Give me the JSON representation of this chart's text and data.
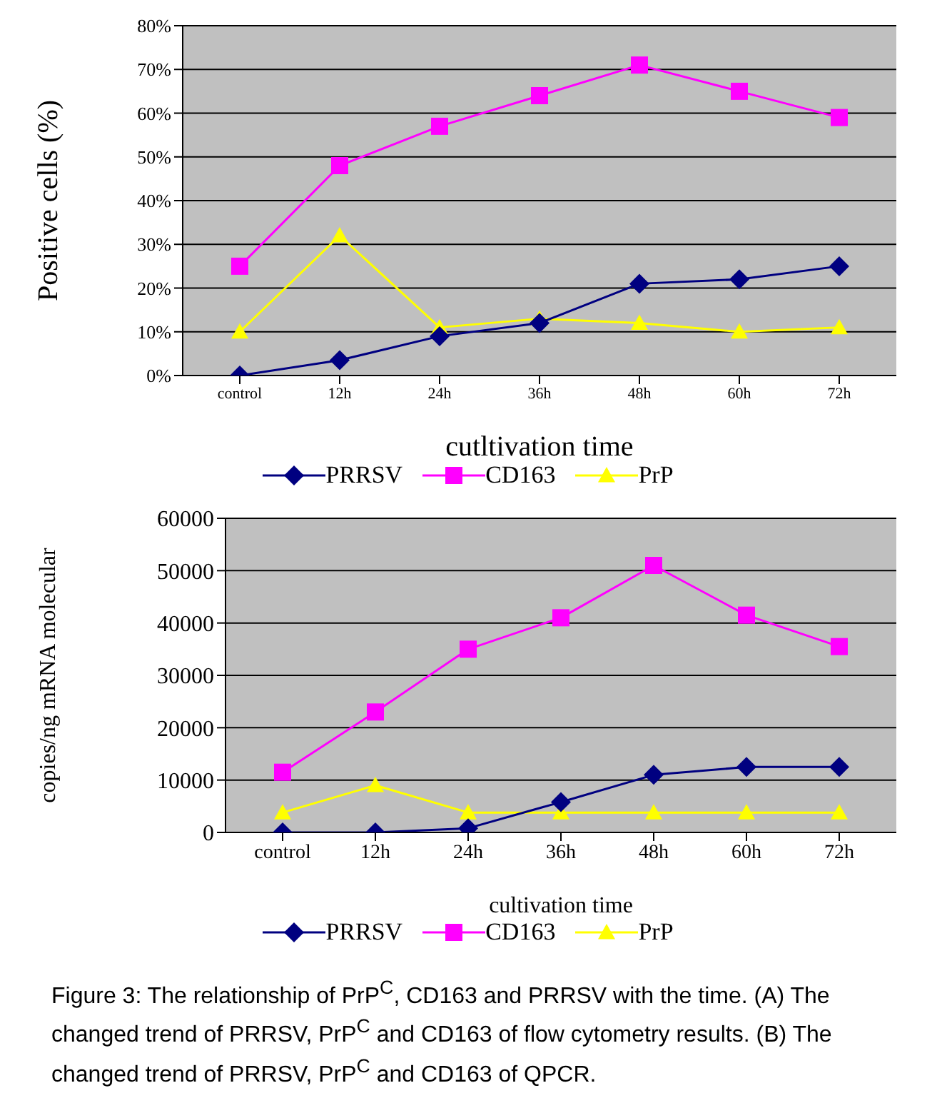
{
  "chart_data": [
    {
      "type": "line",
      "ylabel": "Positive cells (%)",
      "xlabel": "cutltivation time",
      "categories": [
        "control",
        "12h",
        "24h",
        "36h",
        "48h",
        "60h",
        "72h"
      ],
      "series": [
        {
          "name": "PRRSV",
          "color": "#000080",
          "marker": "diamond",
          "values": [
            0,
            3.5,
            9,
            12,
            21,
            22,
            25
          ]
        },
        {
          "name": "CD163",
          "color": "#ff00ff",
          "marker": "square",
          "values": [
            25,
            48,
            57,
            64,
            71,
            65,
            59
          ]
        },
        {
          "name": "PrP",
          "color": "#ffff00",
          "marker": "triangle",
          "values": [
            10,
            32,
            11,
            13,
            12,
            10,
            11
          ]
        }
      ],
      "ylim": [
        0,
        80
      ],
      "yticks": [
        {
          "value": 0,
          "label": "0%"
        },
        {
          "value": 10,
          "label": "10%"
        },
        {
          "value": 20,
          "label": "20%"
        },
        {
          "value": 30,
          "label": "30%"
        },
        {
          "value": 40,
          "label": "40%"
        },
        {
          "value": 50,
          "label": "50%"
        },
        {
          "value": 60,
          "label": "60%"
        },
        {
          "value": 70,
          "label": "70%"
        },
        {
          "value": 80,
          "label": "80%"
        }
      ],
      "grid": "y",
      "legend": "bottom"
    },
    {
      "type": "line",
      "ylabel": "copies/ng mRNA molecular",
      "xlabel": "cultivation time",
      "categories": [
        "control",
        "12h",
        "24h",
        "36h",
        "48h",
        "60h",
        "72h"
      ],
      "series": [
        {
          "name": "PRRSV",
          "color": "#000080",
          "marker": "diamond",
          "values": [
            0,
            0,
            800,
            5800,
            11000,
            12500,
            12500
          ]
        },
        {
          "name": "CD163",
          "color": "#ff00ff",
          "marker": "square",
          "values": [
            11500,
            23000,
            35000,
            41000,
            51000,
            41500,
            35500
          ]
        },
        {
          "name": "PrP",
          "color": "#ffff00",
          "marker": "triangle",
          "values": [
            3800,
            9000,
            3800,
            3800,
            3800,
            3800,
            3800
          ]
        }
      ],
      "ylim": [
        0,
        60000
      ],
      "yticks": [
        0,
        10000,
        20000,
        30000,
        40000,
        50000,
        60000
      ],
      "grid": "y",
      "legend": "bottom",
      "annotations": [
        "Figure 3: The relationship of PrP$^{C}$, CD163 and PRRSV with the time. (A) The changed trend of PRRSV, PrP$^{C}$ and CD163 of flow cytometry results. (B) The changed trend of PRRSV, PrP$^{C}$ and CD163 of QPCR."
      ]
    }
  ]
}
